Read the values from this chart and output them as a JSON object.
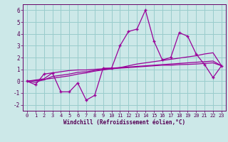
{
  "x": [
    0,
    1,
    2,
    3,
    4,
    5,
    6,
    7,
    8,
    9,
    10,
    11,
    12,
    13,
    14,
    15,
    16,
    17,
    18,
    19,
    20,
    21,
    22,
    23
  ],
  "y_main": [
    0.0,
    -0.3,
    0.6,
    0.7,
    -0.9,
    -0.9,
    -0.15,
    -1.6,
    -1.2,
    1.1,
    1.1,
    3.0,
    4.2,
    4.4,
    6.0,
    3.4,
    1.8,
    2.0,
    4.1,
    3.8,
    2.3,
    1.4,
    0.3,
    1.3
  ],
  "y_line1": [
    0.0,
    0.1,
    0.2,
    0.7,
    0.8,
    0.9,
    0.95,
    0.95,
    1.0,
    1.05,
    1.1,
    1.15,
    1.2,
    1.25,
    1.3,
    1.35,
    1.4,
    1.45,
    1.5,
    1.55,
    1.6,
    1.65,
    1.7,
    1.3
  ],
  "y_line2": [
    0.0,
    -0.1,
    0.15,
    0.25,
    0.35,
    0.45,
    0.6,
    0.7,
    0.85,
    0.95,
    1.05,
    1.15,
    1.3,
    1.45,
    1.55,
    1.65,
    1.75,
    1.85,
    1.95,
    2.05,
    2.15,
    2.3,
    2.4,
    1.3
  ],
  "y_line3": [
    0.0,
    0.05,
    0.1,
    0.4,
    0.5,
    0.6,
    0.75,
    0.8,
    0.9,
    1.0,
    1.05,
    1.1,
    1.15,
    1.2,
    1.25,
    1.3,
    1.35,
    1.35,
    1.4,
    1.42,
    1.45,
    1.5,
    1.55,
    1.3
  ],
  "color_main": "#990099",
  "color_lines": "#990099",
  "bg_color": "#cce8e8",
  "grid_color": "#99cccc",
  "xlabel": "Windchill (Refroidissement éolien,°C)",
  "xlim": [
    -0.5,
    23.5
  ],
  "ylim": [
    -2.5,
    6.5
  ],
  "yticks": [
    -2,
    -1,
    0,
    1,
    2,
    3,
    4,
    5,
    6
  ],
  "xticks": [
    0,
    1,
    2,
    3,
    4,
    5,
    6,
    7,
    8,
    9,
    10,
    11,
    12,
    13,
    14,
    15,
    16,
    17,
    18,
    19,
    20,
    21,
    22,
    23
  ]
}
